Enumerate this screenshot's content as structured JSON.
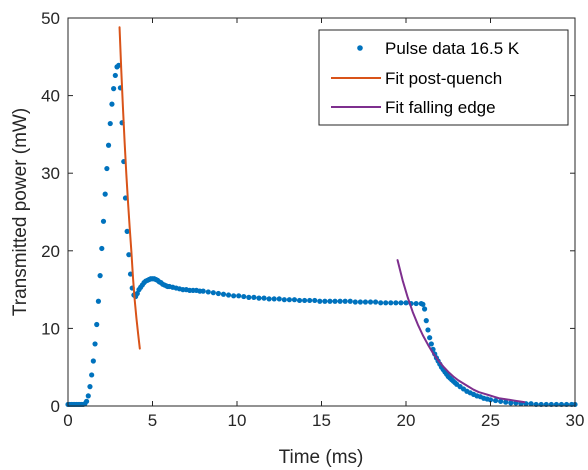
{
  "chart_data": {
    "type": "scatter",
    "xlabel": "Time (ms)",
    "ylabel": "Transmitted power (mW)",
    "xlim": [
      0,
      30
    ],
    "ylim": [
      0,
      50
    ],
    "xticks": [
      0,
      5,
      10,
      15,
      20,
      25,
      30
    ],
    "yticks": [
      0,
      10,
      20,
      30,
      40,
      50
    ],
    "xtick_labels": [
      "0",
      "5",
      "10",
      "15",
      "20",
      "25",
      "30"
    ],
    "ytick_labels": [
      "0",
      "10",
      "20",
      "30",
      "40",
      "50"
    ],
    "grid": false,
    "legend_position": "top-right",
    "series": [
      {
        "name": "Pulse data 16.5 K",
        "kind": "markers",
        "color": "#0072BD",
        "x": [
          0,
          0.1,
          0.2,
          0.3,
          0.4,
          0.5,
          0.6,
          0.7,
          0.8,
          0.9,
          1.0,
          1.1,
          1.2,
          1.3,
          1.4,
          1.5,
          1.6,
          1.7,
          1.8,
          1.9,
          2.0,
          2.1,
          2.2,
          2.3,
          2.4,
          2.5,
          2.6,
          2.7,
          2.8,
          2.9,
          3.0,
          3.1,
          3.2,
          3.3,
          3.4,
          3.5,
          3.6,
          3.7,
          3.8,
          3.9,
          4.0,
          4.1,
          4.2,
          4.3,
          4.4,
          4.5,
          4.6,
          4.7,
          4.8,
          4.9,
          5.0,
          5.1,
          5.2,
          5.3,
          5.4,
          5.5,
          5.6,
          5.7,
          5.8,
          5.9,
          6.0,
          6.2,
          6.4,
          6.6,
          6.8,
          7.0,
          7.2,
          7.4,
          7.6,
          7.8,
          8.0,
          8.3,
          8.6,
          8.9,
          9.2,
          9.5,
          9.8,
          10.1,
          10.4,
          10.7,
          11.0,
          11.3,
          11.6,
          11.9,
          12.2,
          12.5,
          12.8,
          13.1,
          13.4,
          13.7,
          14.0,
          14.3,
          14.6,
          14.9,
          15.2,
          15.5,
          15.8,
          16.1,
          16.4,
          16.7,
          17.0,
          17.3,
          17.6,
          17.9,
          18.2,
          18.5,
          18.8,
          19.1,
          19.4,
          19.7,
          20.0,
          20.3,
          20.6,
          20.9,
          21.0,
          21.1,
          21.2,
          21.3,
          21.4,
          21.5,
          21.6,
          21.7,
          21.8,
          21.9,
          22.0,
          22.1,
          22.2,
          22.3,
          22.4,
          22.5,
          22.6,
          22.7,
          22.8,
          22.9,
          23.0,
          23.2,
          23.4,
          23.6,
          23.8,
          24.0,
          24.2,
          24.4,
          24.6,
          24.8,
          25.0,
          25.3,
          25.6,
          25.9,
          26.2,
          26.5,
          26.8,
          27.1,
          27.4,
          27.7,
          28.0,
          28.3,
          28.6,
          28.9,
          29.2,
          29.5,
          29.8,
          30.0
        ],
        "y": [
          0.2,
          0.2,
          0.2,
          0.2,
          0.2,
          0.2,
          0.2,
          0.2,
          0.2,
          0.2,
          0.3,
          0.6,
          1.3,
          2.5,
          4.0,
          5.8,
          8.0,
          10.5,
          13.5,
          16.8,
          20.3,
          23.8,
          27.3,
          30.6,
          33.6,
          36.4,
          38.9,
          40.9,
          42.6,
          43.7,
          43.9,
          41.0,
          36.5,
          31.5,
          26.8,
          22.5,
          19.5,
          17.0,
          15.2,
          14.3,
          14.1,
          14.5,
          15.0,
          15.3,
          15.6,
          15.9,
          16.1,
          16.2,
          16.3,
          16.4,
          16.4,
          16.4,
          16.3,
          16.2,
          16.0,
          15.9,
          15.7,
          15.6,
          15.5,
          15.4,
          15.4,
          15.3,
          15.2,
          15.1,
          15.0,
          15.0,
          14.9,
          14.9,
          14.9,
          14.8,
          14.8,
          14.7,
          14.6,
          14.5,
          14.4,
          14.3,
          14.2,
          14.2,
          14.1,
          14.0,
          14.0,
          13.9,
          13.9,
          13.8,
          13.8,
          13.8,
          13.7,
          13.7,
          13.7,
          13.6,
          13.6,
          13.6,
          13.6,
          13.5,
          13.5,
          13.5,
          13.5,
          13.5,
          13.5,
          13.5,
          13.4,
          13.4,
          13.4,
          13.4,
          13.4,
          13.3,
          13.3,
          13.3,
          13.3,
          13.3,
          13.3,
          13.2,
          13.2,
          13.2,
          13.1,
          12.5,
          11.0,
          9.8,
          8.8,
          8.0,
          7.3,
          6.7,
          6.2,
          5.8,
          5.4,
          5.0,
          4.7,
          4.4,
          4.1,
          3.8,
          3.6,
          3.4,
          3.2,
          3.0,
          2.8,
          2.5,
          2.2,
          1.9,
          1.7,
          1.5,
          1.3,
          1.2,
          1.0,
          0.9,
          0.8,
          0.7,
          0.6,
          0.5,
          0.4,
          0.4,
          0.3,
          0.3,
          0.3,
          0.2,
          0.2,
          0.2,
          0.2,
          0.2,
          0.2,
          0.2,
          0.2,
          0.2
        ]
      },
      {
        "name": "Fit post-quench",
        "kind": "line",
        "color": "#D95319",
        "x": [
          3.05,
          3.15,
          3.25,
          3.35,
          3.45,
          3.55,
          3.65,
          3.75,
          3.85,
          3.95,
          4.05,
          4.15,
          4.25
        ],
        "y": [
          48.8,
          43.4,
          38.5,
          34.0,
          29.9,
          26.3,
          23.0,
          19.9,
          16.4,
          13.6,
          11.3,
          9.3,
          7.4
        ]
      },
      {
        "name": "Fit falling edge",
        "kind": "line",
        "color": "#7E2F8E",
        "x": [
          19.5,
          19.8,
          20.1,
          20.4,
          20.7,
          21.0,
          21.3,
          21.6,
          21.9,
          22.2,
          22.5,
          22.8,
          23.1,
          23.4,
          23.7,
          24.0,
          24.3,
          24.6,
          24.9,
          25.2,
          25.5,
          25.8,
          26.1,
          26.4,
          26.7,
          27.0
        ],
        "y": [
          18.8,
          16.2,
          14.0,
          12.1,
          10.5,
          9.1,
          7.9,
          6.8,
          5.9,
          5.1,
          4.4,
          3.8,
          3.3,
          2.9,
          2.5,
          2.1,
          1.8,
          1.6,
          1.4,
          1.2,
          1.0,
          0.9,
          0.8,
          0.7,
          0.6,
          0.5
        ]
      }
    ]
  }
}
